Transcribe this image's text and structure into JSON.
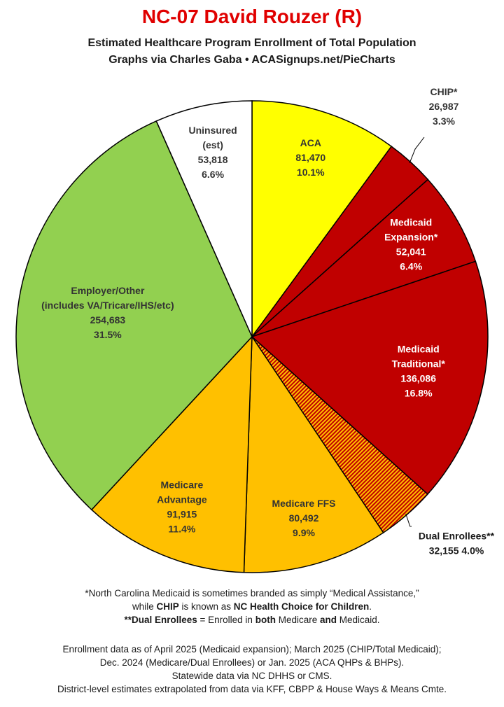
{
  "chart_data": {
    "type": "pie",
    "title": "NC-07 David Rouzer (R)",
    "subtitle_lines": [
      "Estimated Healthcare Program Enrollment of Total Population",
      "Graphs via Charles Gaba  •  ACASignups.net/PieCharts"
    ],
    "slices": [
      {
        "label_lines": [
          "ACA"
        ],
        "value": 81470,
        "value_label": "81,470",
        "percent": "10.1%",
        "color": "#ffff00",
        "text_color": "#333333"
      },
      {
        "label_lines": [
          "CHIP*"
        ],
        "value": 26987,
        "value_label": "26,987",
        "percent": "3.3%",
        "color": "#c00000",
        "text_color": "#333333"
      },
      {
        "label_lines": [
          "Medicaid",
          "Expansion*"
        ],
        "value": 52041,
        "value_label": "52,041",
        "percent": "6.4%",
        "color": "#c00000",
        "text_color": "#ffffff"
      },
      {
        "label_lines": [
          "Medicaid",
          "Traditional*"
        ],
        "value": 136086,
        "value_label": "136,086",
        "percent": "16.8%",
        "color": "#c00000",
        "text_color": "#ffffff"
      },
      {
        "label_lines": [
          "Dual Enrollees**"
        ],
        "value": 32155,
        "value_label": "32,155",
        "percent": "4.0%",
        "color": "#c00000",
        "text_color": "#1a1a1a",
        "hatched": true
      },
      {
        "label_lines": [
          "Medicare FFS"
        ],
        "value": 80492,
        "value_label": "80,492",
        "percent": "9.9%",
        "color": "#ffc000",
        "text_color": "#333333"
      },
      {
        "label_lines": [
          "Medicare",
          "Advantage"
        ],
        "value": 91915,
        "value_label": "91,915",
        "percent": "11.4%",
        "color": "#ffc000",
        "text_color": "#333333"
      },
      {
        "label_lines": [
          "Employer/Other",
          "(includes VA/Tricare/IHS/etc)"
        ],
        "value": 254683,
        "value_label": "254,683",
        "percent": "31.5%",
        "color": "#92d050",
        "text_color": "#333333"
      },
      {
        "label_lines": [
          "Uninsured",
          "(est)"
        ],
        "value": 53818,
        "value_label": "53,818",
        "percent": "6.6%",
        "color": "#ffffff",
        "text_color": "#333333"
      }
    ],
    "legend": "none"
  },
  "notes": {
    "line1": "*North Carolina Medicaid is sometimes branded as simply “Medical Assistance,”",
    "line2_pre": "while ",
    "line2_chip": "CHIP",
    "line2_mid": " is known as ",
    "line2_nc": "NC Health Choice for Children",
    "line2_end": ".",
    "line3_dual": "**Dual Enrollees",
    "line3_mid1": " = Enrolled in ",
    "line3_both": "both",
    "line3_mid2": " Medicare ",
    "line3_and": "and",
    "line3_end": " Medicaid."
  },
  "sources": [
    "Enrollment data as of April 2025 (Medicaid expansion); March 2025 (CHIP/Total Medicaid);",
    "Dec. 2024 (Medicare/Dual Enrollees) or Jan. 2025 (ACA QHPs & BHPs).",
    "Statewide data via NC DHHS or CMS.",
    "District-level estimates extrapolated from data via KFF, CBPP & House Ways & Means Cmte."
  ]
}
